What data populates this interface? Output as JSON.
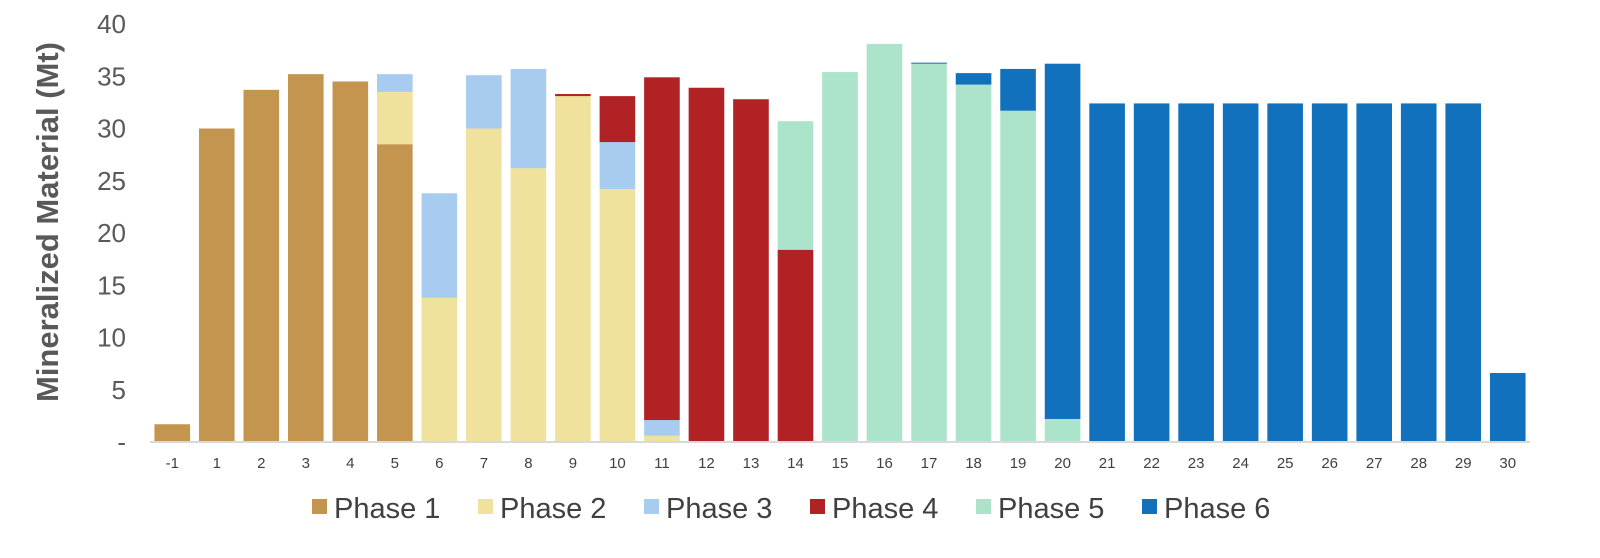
{
  "chart_data": {
    "type": "bar",
    "stacked": true,
    "ylabel": "Mineralized Material (Mt)",
    "xlabel": "",
    "ylim": [
      0,
      40
    ],
    "yticks": [
      {
        "value": 0,
        "label": "-"
      },
      {
        "value": 5,
        "label": "5"
      },
      {
        "value": 10,
        "label": "10"
      },
      {
        "value": 15,
        "label": "15"
      },
      {
        "value": 20,
        "label": "20"
      },
      {
        "value": 25,
        "label": "25"
      },
      {
        "value": 30,
        "label": "30"
      },
      {
        "value": 35,
        "label": "35"
      },
      {
        "value": 40,
        "label": "40"
      }
    ],
    "categories": [
      "-1",
      "1",
      "2",
      "3",
      "4",
      "5",
      "6",
      "7",
      "8",
      "9",
      "10",
      "11",
      "12",
      "13",
      "14",
      "15",
      "16",
      "17",
      "18",
      "19",
      "20",
      "21",
      "22",
      "23",
      "24",
      "25",
      "26",
      "27",
      "28",
      "29",
      "30"
    ],
    "series": [
      {
        "name": "Phase 1",
        "color": "#C4954F",
        "values": [
          1.7,
          30.0,
          33.7,
          35.2,
          34.5,
          28.5,
          0,
          0,
          0,
          0,
          0,
          0,
          0,
          0,
          0,
          0,
          0,
          0,
          0,
          0,
          0,
          0,
          0,
          0,
          0,
          0,
          0,
          0,
          0,
          0,
          0
        ]
      },
      {
        "name": "Phase 2",
        "color": "#F0E19C",
        "values": [
          0,
          0,
          0,
          0,
          0,
          5.0,
          13.8,
          30.0,
          26.2,
          33.1,
          24.2,
          0.6,
          0,
          0,
          0,
          0,
          0,
          0,
          0,
          0,
          0,
          0,
          0,
          0,
          0,
          0,
          0,
          0,
          0,
          0,
          0
        ]
      },
      {
        "name": "Phase 3",
        "color": "#A7CCF0",
        "values": [
          0,
          0,
          0,
          0,
          0,
          1.7,
          10.0,
          5.1,
          9.5,
          0,
          4.5,
          1.5,
          0,
          0,
          0,
          0,
          0,
          0,
          0,
          0,
          0,
          0,
          0,
          0,
          0,
          0,
          0,
          0,
          0,
          0,
          0
        ]
      },
      {
        "name": "Phase 4",
        "color": "#B12225",
        "values": [
          0,
          0,
          0,
          0,
          0,
          0,
          0,
          0,
          0,
          0.2,
          4.4,
          32.8,
          33.9,
          32.8,
          18.4,
          0,
          0,
          0,
          0,
          0,
          0,
          0,
          0,
          0,
          0,
          0,
          0,
          0,
          0,
          0,
          0
        ]
      },
      {
        "name": "Phase 5",
        "color": "#ACE3CB",
        "values": [
          0,
          0,
          0,
          0,
          0,
          0,
          0,
          0,
          0,
          0,
          0,
          0,
          0,
          0,
          12.3,
          35.4,
          38.1,
          36.2,
          34.2,
          31.7,
          2.2,
          0,
          0,
          0,
          0,
          0,
          0,
          0,
          0,
          0,
          0
        ]
      },
      {
        "name": "Phase 6",
        "color": "#1271BD",
        "values": [
          0,
          0,
          0,
          0,
          0,
          0,
          0,
          0,
          0,
          0,
          0,
          0,
          0,
          0,
          0,
          0,
          0,
          0.1,
          1.1,
          4.0,
          34.0,
          32.4,
          32.4,
          32.4,
          32.4,
          32.4,
          32.4,
          32.4,
          32.4,
          32.4,
          6.6
        ]
      }
    ],
    "legend": "bottom",
    "grid": false
  }
}
